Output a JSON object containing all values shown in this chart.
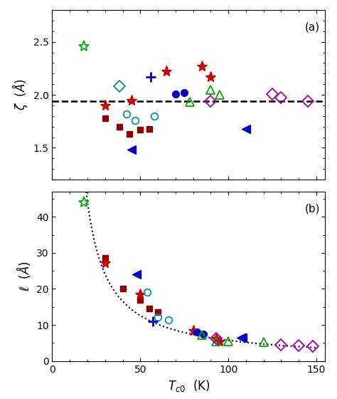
{
  "panel_a_label": "(a)",
  "panel_b_label": "(b)",
  "xlabel": "$T_{c0}$  (K)",
  "ylabel_a": "$\\zeta$  ($\\AA$)",
  "ylabel_b": "$\\ell$  ($\\AA$)",
  "xlim": [
    0,
    155
  ],
  "ylim_a": [
    1.2,
    2.8
  ],
  "ylim_b": [
    0,
    47
  ],
  "dashed_line_y": 1.94,
  "yticks_a": [
    1.5,
    2.0,
    2.5
  ],
  "yticks_b": [
    0,
    10,
    20,
    30,
    40
  ],
  "xticks": [
    0,
    50,
    100,
    150
  ],
  "green_star_a": {
    "x": [
      18
    ],
    "y": [
      2.46
    ]
  },
  "green_star_b": {
    "x": [
      18
    ],
    "y": [
      44
    ]
  },
  "darkred_sq_a": {
    "x": [
      30,
      38,
      44,
      50,
      55
    ],
    "y": [
      1.78,
      1.7,
      1.63,
      1.67,
      1.68
    ]
  },
  "darkred_sq_b": {
    "x": [
      30,
      40,
      50,
      55,
      60
    ],
    "y": [
      28.5,
      20.0,
      17.0,
      14.5,
      13.5
    ]
  },
  "red_star_a": {
    "x": [
      30,
      45
    ],
    "y": [
      1.9,
      1.945
    ]
  },
  "red_star_b": {
    "x": [
      30,
      50
    ],
    "y": [
      27.2,
      18.5
    ]
  },
  "cyan_diam_a": {
    "x": [
      38
    ],
    "y": [
      2.08
    ]
  },
  "cyan_circ_a": {
    "x": [
      42,
      47,
      58
    ],
    "y": [
      1.82,
      1.76,
      1.8
    ]
  },
  "cyan_circ_b": {
    "x": [
      54,
      60,
      66
    ],
    "y": [
      19.2,
      12.2,
      11.5
    ]
  },
  "blue_plus_a": {
    "x": [
      56
    ],
    "y": [
      2.17
    ]
  },
  "blue_plus_b": {
    "x": [
      57
    ],
    "y": [
      11.0
    ]
  },
  "red_star2_a": {
    "x": [
      65,
      85,
      90
    ],
    "y": [
      2.22,
      2.27,
      2.17
    ]
  },
  "red_star2_b": {
    "x": [
      80,
      93,
      95
    ],
    "y": [
      8.5,
      6.2,
      5.5
    ]
  },
  "blue_circ_a": {
    "x": [
      70,
      75
    ],
    "y": [
      2.01,
      2.02
    ]
  },
  "blue_circ_b": {
    "x": [
      82,
      86
    ],
    "y": [
      8.0,
      7.5
    ]
  },
  "green_tri_a": {
    "x": [
      78,
      90,
      95
    ],
    "y": [
      1.935,
      2.05,
      2.0
    ]
  },
  "green_tri_b": {
    "x": [
      85,
      93,
      100
    ],
    "y": [
      7.2,
      5.5,
      5.5
    ]
  },
  "magenta_diam_a": {
    "x": [
      90,
      125,
      130,
      145
    ],
    "y": [
      1.94,
      2.01,
      1.97,
      1.94
    ]
  },
  "magenta_diam_b": {
    "x": [
      93,
      130,
      140,
      148
    ],
    "y": [
      6.2,
      4.5,
      4.3,
      4.2
    ]
  },
  "blue_tri_a": {
    "x": [
      45,
      110
    ],
    "y": [
      1.48,
      1.68
    ]
  },
  "blue_tri_b": {
    "x": [
      48,
      107,
      108
    ],
    "y": [
      24.0,
      6.5,
      6.5
    ]
  },
  "green_tri2_b": {
    "x": [
      120
    ],
    "y": [
      5.2
    ]
  },
  "curve_A": 530,
  "curve_T0": 8.0,
  "colors": {
    "green": "#00aa00",
    "darkred": "#8b0000",
    "red": "#cc0000",
    "cyan": "#009999",
    "blue": "#0000cc",
    "magenta": "#aa00aa"
  }
}
